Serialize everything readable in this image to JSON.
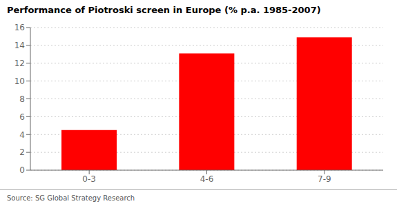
{
  "chart_data": {
    "type": "bar",
    "title": "Performance of Piotroski screen in Europe (% p.a. 1985-2007)",
    "categories": [
      "0-3",
      "4-6",
      "7-9"
    ],
    "values": [
      4.5,
      13.1,
      14.9
    ],
    "color": "#ff0000",
    "ylim": [
      0,
      16
    ],
    "yticks": [
      0,
      2,
      4,
      6,
      8,
      10,
      12,
      14,
      16
    ],
    "grid": true,
    "annotations": [
      "Source: SG Global Strategy Research"
    ]
  }
}
